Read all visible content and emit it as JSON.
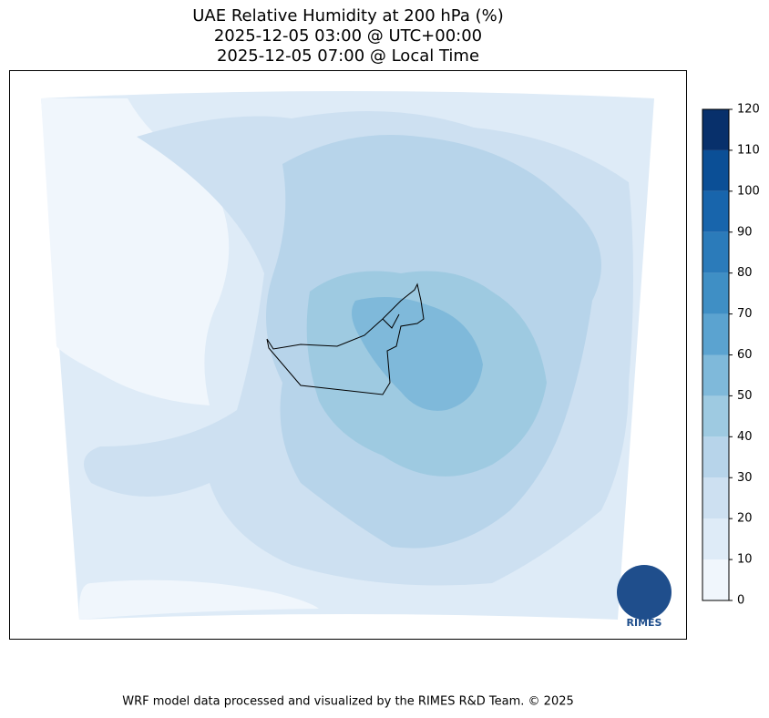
{
  "title": [
    "UAE Relative Humidity at 200 hPa (%)",
    "2025-12-05 03:00 @ UTC+00:00",
    "2025-12-05 07:00 @ Local Time"
  ],
  "colorbar": {
    "ticks": [
      0,
      10,
      20,
      30,
      40,
      50,
      60,
      70,
      80,
      90,
      100,
      110,
      120
    ],
    "colors": [
      "#f0f6fc",
      "#deebf7",
      "#cde0f1",
      "#b7d4ea",
      "#9ecae1",
      "#7fb9da",
      "#5ba3d0",
      "#3f8fc5",
      "#2b7bba",
      "#1865ac",
      "#0b4f96",
      "#08306b"
    ]
  },
  "logo": "RIMES",
  "footer": "WRF model data processed and visualized by the RIMES R&D Team. © 2025"
}
